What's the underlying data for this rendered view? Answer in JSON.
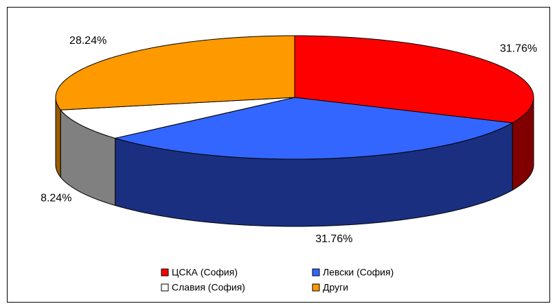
{
  "chart_data": {
    "type": "pie3d",
    "categories": [
      "ЦСКА (София)",
      "Левски (София)",
      "Славия (София)",
      "Други"
    ],
    "values": [
      31.76,
      31.76,
      8.24,
      28.24
    ],
    "value_labels": [
      "31.76%",
      "31.76%",
      "8.24%",
      "28.24%"
    ],
    "colors": [
      "#ff0000",
      "#3366ff",
      "#ffffff",
      "#ff9900"
    ],
    "side_colors": [
      "#800000",
      "#1a2f80",
      "#808080",
      "#995c00"
    ],
    "legend": "bottom"
  }
}
